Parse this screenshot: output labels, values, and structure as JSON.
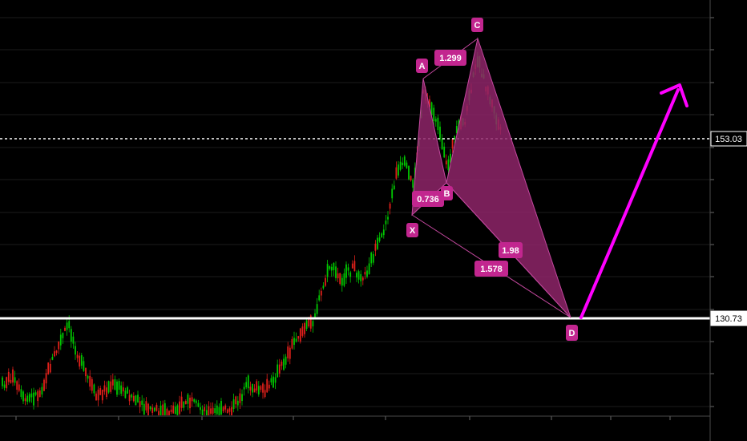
{
  "chart_data": {
    "type": "candlestick",
    "price_labels": [
      {
        "name": "current-price",
        "value": "153.03",
        "color": "#ffffff",
        "style": "dotted"
      },
      {
        "name": "support",
        "value": "130.73",
        "color": "#ffffff",
        "style": "solid"
      }
    ],
    "pattern": {
      "points": [
        {
          "id": "X",
          "label": "X"
        },
        {
          "id": "A",
          "label": "A"
        },
        {
          "id": "B",
          "label": "B"
        },
        {
          "id": "C",
          "label": "C"
        },
        {
          "id": "D",
          "label": "D"
        }
      ],
      "ratios": [
        {
          "id": "xab",
          "value": "0.736"
        },
        {
          "id": "abc",
          "value": "1.299"
        },
        {
          "id": "bcd",
          "value": "1.98"
        },
        {
          "id": "xad",
          "value": "1.578"
        }
      ],
      "fill_color": "#8e2468",
      "line_color": "#c2479d",
      "label_bg": "#c2268f"
    },
    "projection_arrow_color": "#ff00ff",
    "candle_colors": {
      "up": "#00c800",
      "down": "#e0201a"
    },
    "grid": true,
    "background": "#000000"
  }
}
